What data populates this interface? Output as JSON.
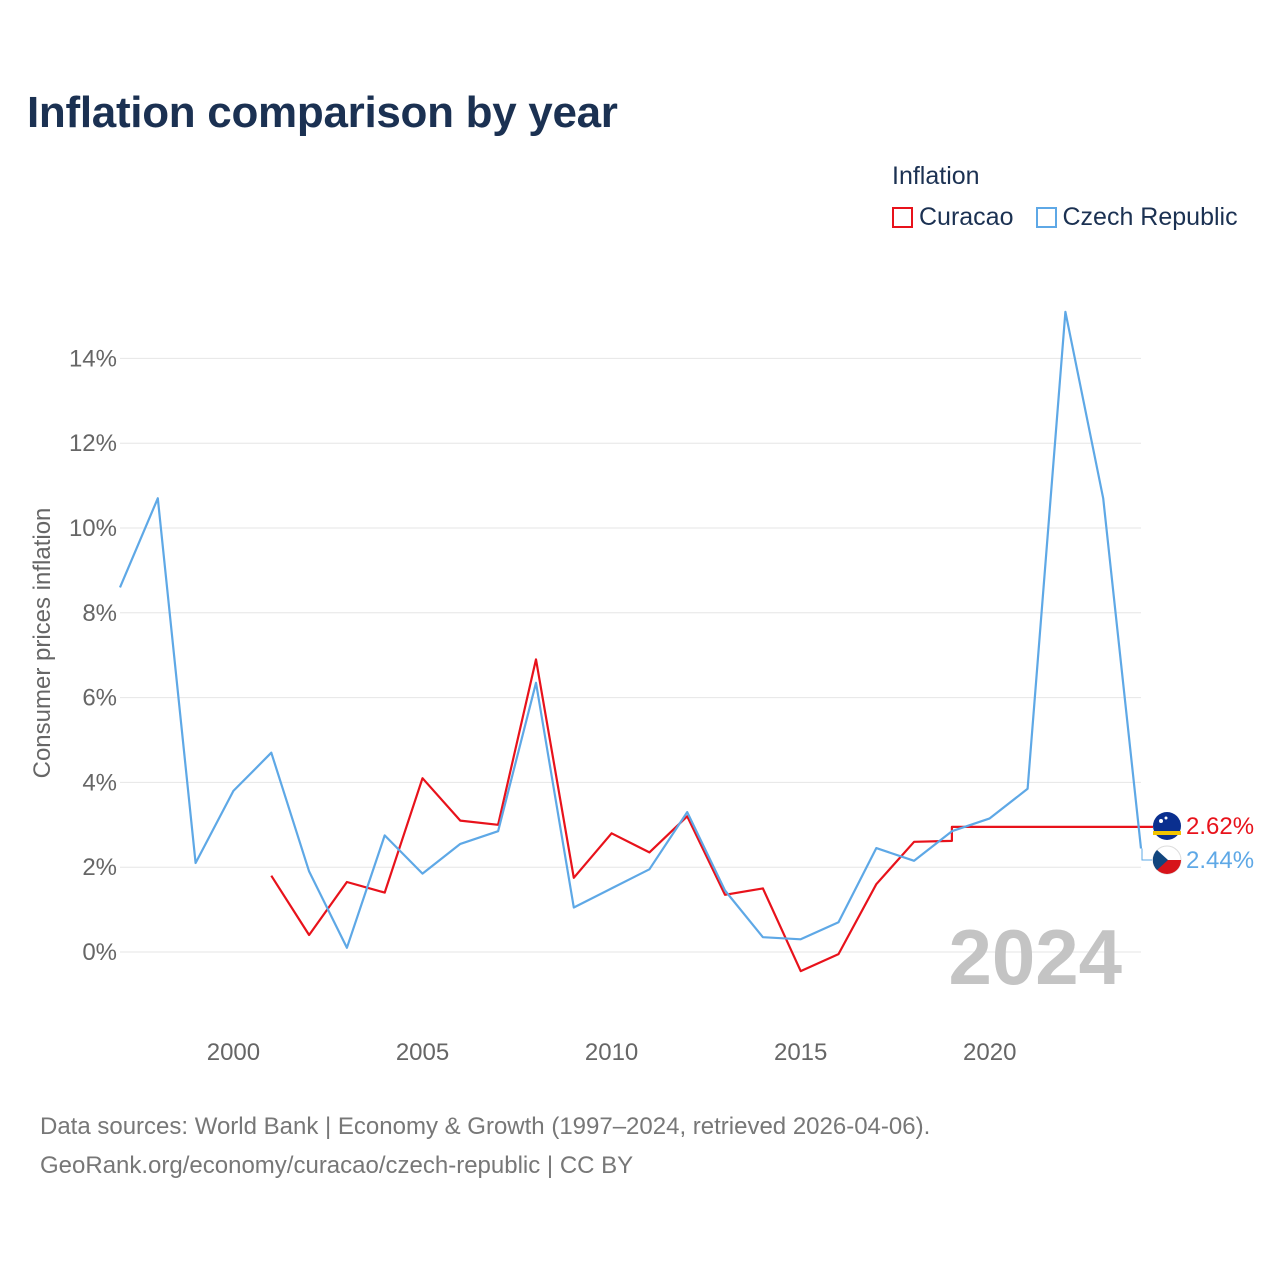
{
  "title": "Inflation comparison by year",
  "legend": {
    "title": "Inflation",
    "items": [
      {
        "label": "Curacao",
        "color": "#e8121b"
      },
      {
        "label": "Czech Republic",
        "color": "#5ea8e6"
      }
    ]
  },
  "year_label": "2024",
  "footer": {
    "line1": "Data sources: World Bank | Economy & Growth (1997–2024, retrieved 2026-04-06).",
    "line2": "GeoRank.org/economy/curacao/czech-republic | CC BY"
  },
  "chart_data": {
    "type": "line",
    "ylabel": "Consumer prices inflation",
    "xlabel": "",
    "xlim": [
      1997,
      2024
    ],
    "ylim": [
      -2,
      15.5
    ],
    "x_ticks": [
      2000,
      2005,
      2010,
      2015,
      2020
    ],
    "y_ticks": [
      0,
      2,
      4,
      6,
      8,
      10,
      12,
      14
    ],
    "y_tick_labels": [
      "0%",
      "2%",
      "4%",
      "6%",
      "8%",
      "10%",
      "12%",
      "14%"
    ],
    "series": [
      {
        "name": "Curacao",
        "color": "#e8121b",
        "end_label": "2.62%",
        "points": [
          [
            2001,
            1.8
          ],
          [
            2002,
            0.4
          ],
          [
            2003,
            1.65
          ],
          [
            2004,
            1.4
          ],
          [
            2005,
            4.1
          ],
          [
            2006,
            3.1
          ],
          [
            2007,
            3.0
          ],
          [
            2008,
            6.9
          ],
          [
            2009,
            1.75
          ],
          [
            2010,
            2.8
          ],
          [
            2011,
            2.35
          ],
          [
            2012,
            3.2
          ],
          [
            2013,
            1.35
          ],
          [
            2014,
            1.5
          ],
          [
            2015,
            -0.45
          ],
          [
            2016,
            -0.05
          ],
          [
            2017,
            1.6
          ],
          [
            2018,
            2.6
          ],
          [
            2019,
            2.62
          ]
        ]
      },
      {
        "name": "Czech Republic",
        "color": "#5ea8e6",
        "end_label": "2.44%",
        "points": [
          [
            1997,
            8.6
          ],
          [
            1998,
            10.7
          ],
          [
            1999,
            2.1
          ],
          [
            2000,
            3.8
          ],
          [
            2001,
            4.7
          ],
          [
            2002,
            1.9
          ],
          [
            2003,
            0.1
          ],
          [
            2004,
            2.75
          ],
          [
            2005,
            1.85
          ],
          [
            2006,
            2.55
          ],
          [
            2007,
            2.85
          ],
          [
            2008,
            6.35
          ],
          [
            2009,
            1.05
          ],
          [
            2010,
            1.5
          ],
          [
            2011,
            1.95
          ],
          [
            2012,
            3.3
          ],
          [
            2013,
            1.45
          ],
          [
            2014,
            0.35
          ],
          [
            2015,
            0.3
          ],
          [
            2016,
            0.7
          ],
          [
            2017,
            2.45
          ],
          [
            2018,
            2.15
          ],
          [
            2019,
            2.85
          ],
          [
            2020,
            3.15
          ],
          [
            2021,
            3.85
          ],
          [
            2022,
            15.1
          ],
          [
            2023,
            10.7
          ],
          [
            2024,
            2.44
          ]
        ]
      }
    ]
  }
}
